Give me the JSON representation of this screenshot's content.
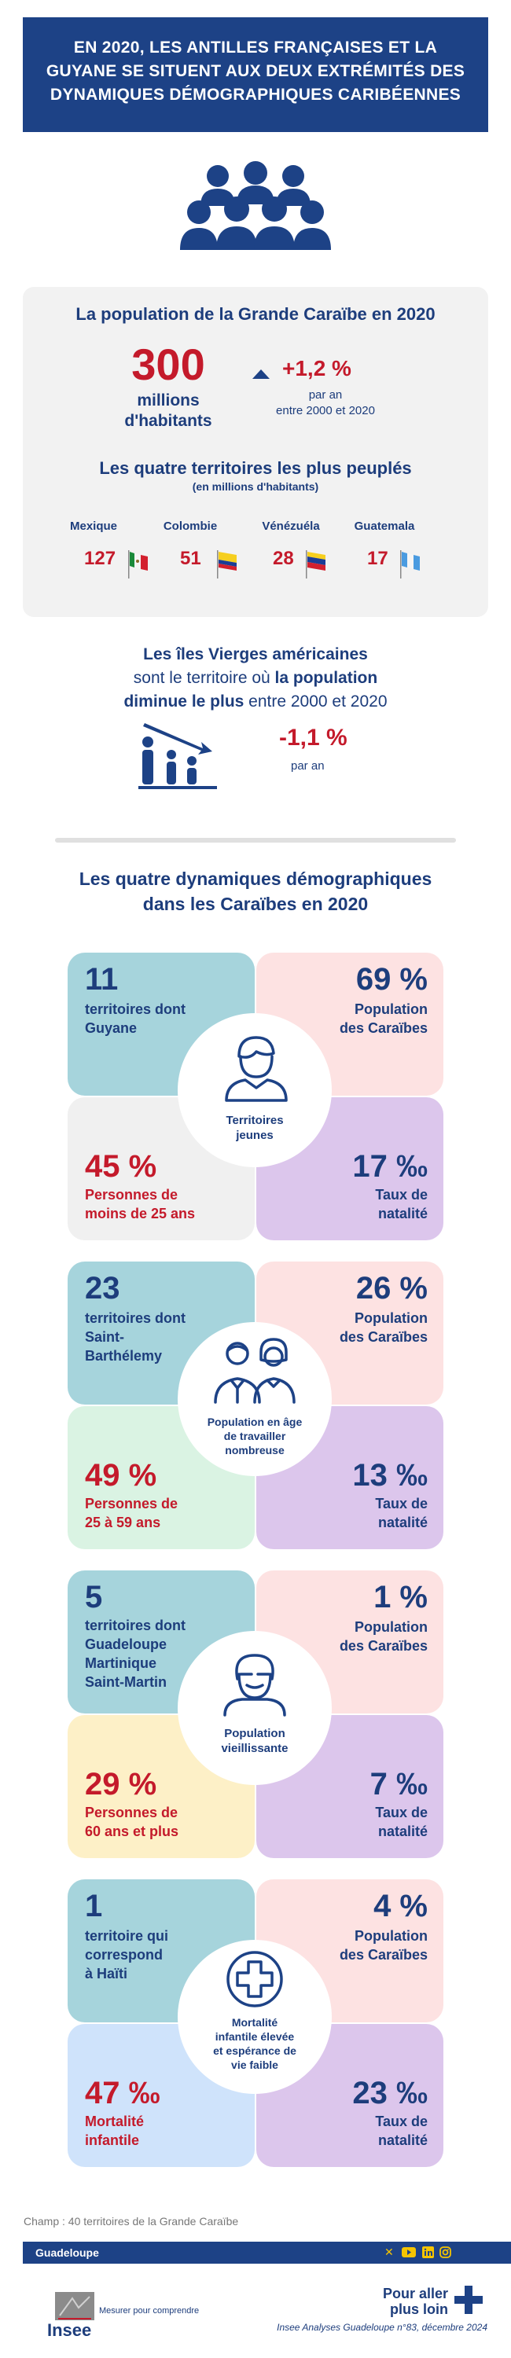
{
  "header": {
    "title_lines": [
      "EN 2020, LES ANTILLES FRANÇAISES ET LA",
      "GUYANE SE SITUENT AUX DEUX EXTRÉMITÉS DES",
      "DYNAMIQUES DÉMOGRAPHIQUES CARIBÉENNES"
    ]
  },
  "population": {
    "heading": "La population de la Grande Caraïbe en 2020",
    "value": "300",
    "unit_line1": "millions",
    "unit_line2": "d'habitants",
    "growth": "+1,2 %",
    "growth_line1": "par an",
    "growth_line2": "entre 2000 et 2020",
    "top4_heading": "Les quatre territoires les plus peuplés",
    "top4_sub": "(en millions d'habitants)",
    "countries": [
      {
        "name": "Mexique",
        "value": "127"
      },
      {
        "name": "Colombie",
        "value": "51"
      },
      {
        "name": "Vénézuéla",
        "value": "28"
      },
      {
        "name": "Guatemala",
        "value": "17"
      }
    ]
  },
  "decline": {
    "line1": "Les îles Vierges américaines",
    "line2_a": "sont le territoire où ",
    "line2_b": "la population",
    "line3_a": "diminue le plus",
    "line3_b": " entre 2000 et 2020",
    "value": "-1,1 %",
    "unit": "par an"
  },
  "dynamics": {
    "heading_line1": "Les quatre dynamiques démographiques",
    "heading_line2": "dans les Caraïbes en 2020",
    "groups": [
      {
        "count": "11",
        "count_label": [
          "territoires dont",
          "Guyane"
        ],
        "share": "69 %",
        "share_label": [
          "Population",
          "des Caraïbes"
        ],
        "age": "45 %",
        "age_label": [
          "Personnes de",
          "moins de 25 ans"
        ],
        "birth": "17 ‰",
        "birth_label": [
          "Taux de",
          "natalité"
        ],
        "center_label": [
          "Territoires",
          "jeunes"
        ]
      },
      {
        "count": "23",
        "count_label": [
          "territoires dont",
          "Saint-",
          "Barthélemy"
        ],
        "share": "26 %",
        "share_label": [
          "Population",
          "des Caraïbes"
        ],
        "age": "49 %",
        "age_label": [
          "Personnes de",
          "25 à 59 ans"
        ],
        "birth": "13 ‰",
        "birth_label": [
          "Taux de",
          "natalité"
        ],
        "center_label": [
          "Population en âge",
          "de travailler",
          "nombreuse"
        ]
      },
      {
        "count": "5",
        "count_label": [
          "territoires dont",
          "Guadeloupe",
          "Martinique",
          "Saint-Martin"
        ],
        "share": "1 %",
        "share_label": [
          "Population",
          "des Caraïbes"
        ],
        "age": "29 %",
        "age_label": [
          "Personnes de",
          "60 ans et plus"
        ],
        "birth": "7 ‰",
        "birth_label": [
          "Taux de",
          "natalité"
        ],
        "center_label": [
          "Population",
          "vieillissante"
        ]
      },
      {
        "count": "1",
        "count_label": [
          "territoire qui",
          "correspond",
          "à Haïti"
        ],
        "share": "4 %",
        "share_label": [
          "Population",
          "des Caraïbes"
        ],
        "age": "47 ‰",
        "age_label": [
          "Mortalité",
          "infantile"
        ],
        "birth": "23 ‰",
        "birth_label": [
          "Taux de",
          "natalité"
        ],
        "center_label": [
          "Mortalité",
          "infantile élevée",
          "et espérance de",
          "vie faible"
        ]
      }
    ]
  },
  "footer": {
    "scope": "Champ : 40 territoires de la Grande Caraïbe",
    "region": "Guadeloupe",
    "social": [
      "x-icon",
      "youtube-icon",
      "linkedin-icon",
      "instagram-icon"
    ],
    "logo_text": "Insee",
    "tagline": "Mesurer pour comprendre",
    "more_line1": "Pour aller",
    "more_line2": "plus loin",
    "source": "Insee Analyses Guadeloupe n°83, décembre 2024"
  },
  "colors": {
    "navy": "#1d4286",
    "red": "#c41a2b",
    "teal": "#a6d4dc",
    "pink": "#fde2e2",
    "lilac": "#dcc6ec",
    "grey": "#f0f0f0",
    "mint": "#daf3e3",
    "cream": "#fdf0c7",
    "sky": "#cfe3fb"
  }
}
